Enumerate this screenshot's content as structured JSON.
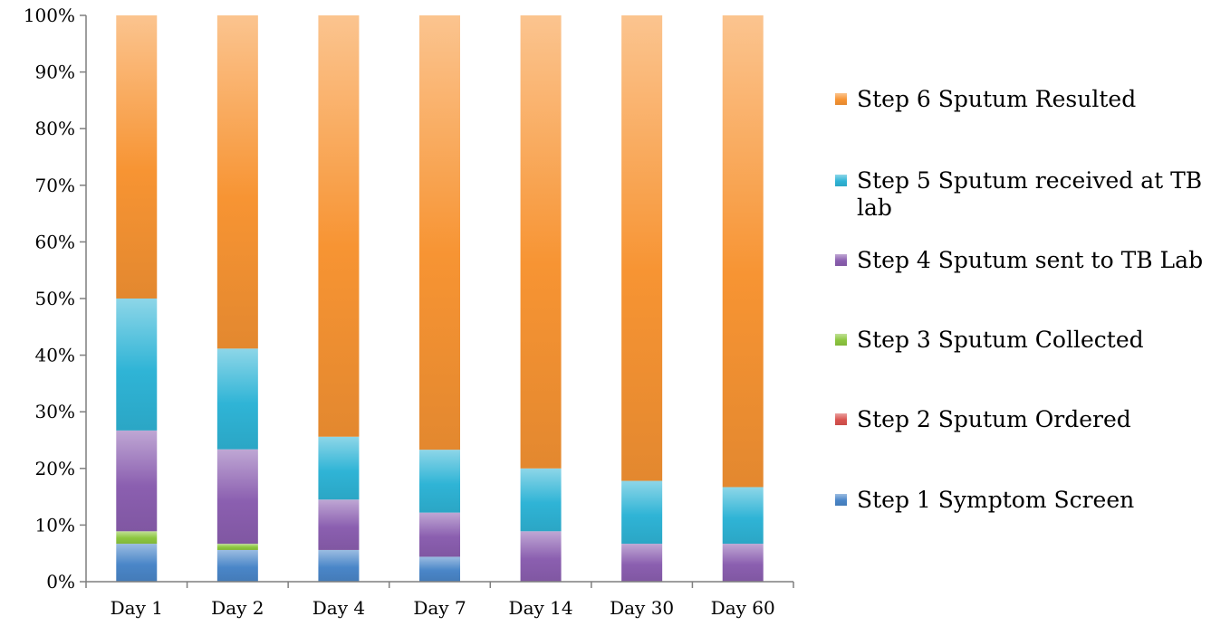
{
  "chart_data": {
    "type": "bar",
    "stacked": true,
    "normalized": true,
    "title": "",
    "xlabel": "",
    "ylabel": "",
    "ylim": [
      0,
      100
    ],
    "y_ticks": [
      "0%",
      "10%",
      "20%",
      "30%",
      "40%",
      "50%",
      "60%",
      "70%",
      "80%",
      "90%",
      "100%"
    ],
    "grid": false,
    "legend_position": "right",
    "categories": [
      "Day 1",
      "Day 2",
      "Day 4",
      "Day 7",
      "Day 14",
      "Day 30",
      "Day 60"
    ],
    "series": [
      {
        "name": "Step 1 Symptom Screen",
        "color": "#4a86c8",
        "values": [
          6.7,
          5.6,
          5.6,
          4.4,
          0,
          0,
          0
        ]
      },
      {
        "name": "Step 2 Sputum Ordered",
        "color": "#d9534f",
        "values": [
          0,
          0,
          0,
          0,
          0,
          0,
          0
        ]
      },
      {
        "name": "Step 3 Sputum Collected",
        "color": "#8cc63f",
        "values": [
          2.2,
          1.1,
          0,
          0,
          0,
          0,
          0
        ]
      },
      {
        "name": "Step 4 Sputum sent to TB Lab",
        "color": "#8b5fb0",
        "values": [
          17.8,
          16.7,
          8.9,
          7.8,
          8.9,
          6.7,
          6.7
        ]
      },
      {
        "name": "Step 5 Sputum received at TB lab",
        "color": "#2fb4d6",
        "values": [
          23.3,
          17.8,
          11.1,
          11.1,
          11.1,
          11.1,
          10.0
        ]
      },
      {
        "name": "Step 6 Sputum Resulted",
        "color": "#f79433",
        "values": [
          50.0,
          58.9,
          74.4,
          76.7,
          80.0,
          82.2,
          83.3
        ]
      }
    ]
  }
}
